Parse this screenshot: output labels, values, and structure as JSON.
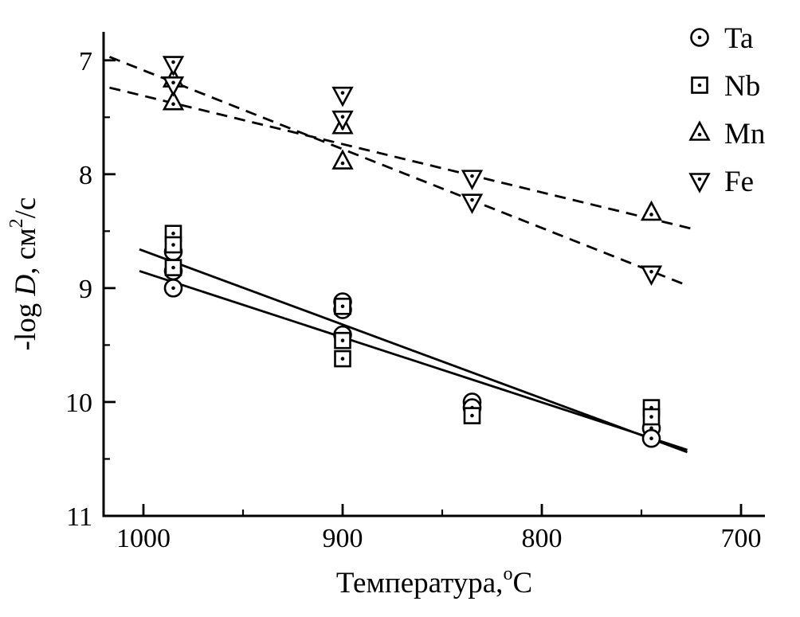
{
  "chart_data": {
    "type": "scatter",
    "title": "",
    "xlabel": "Температура,°С",
    "ylabel": "-log D, см2/с",
    "xlabel_parts": {
      "text": "Температура,",
      "sup": "о",
      "after": "С"
    },
    "ylabel_parts": {
      "pre": "-log ",
      "italic": "D",
      "mid": ", см",
      "sup": "2",
      "post": "/с"
    },
    "x_axis": {
      "min": 1020,
      "max": 688,
      "reversed": true,
      "ticks": [
        1000,
        900,
        800,
        700
      ],
      "minor_ticks": [
        950,
        850,
        750
      ]
    },
    "y_axis": {
      "min": 6.75,
      "max": 11,
      "increases_downward": true,
      "ticks": [
        7,
        8,
        9,
        10,
        11
      ],
      "minor_ticks": [
        7.5,
        8.5,
        9.5,
        10.5
      ]
    },
    "grid": false,
    "legend": {
      "position": "top-right",
      "items": [
        {
          "label": "Ta",
          "marker": "circle-dot"
        },
        {
          "label": "Nb",
          "marker": "square-dot"
        },
        {
          "label": "Mn",
          "marker": "triangle-up-dot"
        },
        {
          "label": "Fe",
          "marker": "triangle-down-dot"
        }
      ]
    },
    "series": [
      {
        "name": "Ta",
        "marker": "circle-dot",
        "points": [
          [
            985,
            8.68
          ],
          [
            985,
            8.85
          ],
          [
            985,
            9.0
          ],
          [
            900,
            9.12
          ],
          [
            900,
            9.19
          ],
          [
            900,
            9.41
          ],
          [
            835,
            10.0
          ],
          [
            835,
            10.05
          ],
          [
            745,
            10.23
          ],
          [
            745,
            10.32
          ]
        ]
      },
      {
        "name": "Nb",
        "marker": "square-dot",
        "points": [
          [
            985,
            8.52
          ],
          [
            985,
            8.62
          ],
          [
            985,
            8.82
          ],
          [
            900,
            9.16
          ],
          [
            900,
            9.46
          ],
          [
            900,
            9.62
          ],
          [
            835,
            10.12
          ],
          [
            745,
            10.05
          ],
          [
            745,
            10.13
          ]
        ]
      },
      {
        "name": "Mn",
        "marker": "triangle-up-dot",
        "points": [
          [
            985,
            7.17
          ],
          [
            985,
            7.37
          ],
          [
            900,
            7.58
          ],
          [
            900,
            7.89
          ],
          [
            745,
            8.34
          ]
        ]
      },
      {
        "name": "Fe",
        "marker": "triangle-down-dot",
        "points": [
          [
            985,
            7.03
          ],
          [
            985,
            7.21
          ],
          [
            900,
            7.3
          ],
          [
            900,
            7.51
          ],
          [
            835,
            8.03
          ],
          [
            835,
            8.24
          ],
          [
            745,
            8.87
          ]
        ]
      }
    ],
    "fit_lines": [
      {
        "name": "Fe-fit",
        "style": "dashed",
        "from": [
          1017,
          6.97
        ],
        "to": [
          728,
          8.97
        ]
      },
      {
        "name": "Mn-fit",
        "style": "dashed",
        "from": [
          1017,
          7.24
        ],
        "to": [
          722,
          8.49
        ]
      },
      {
        "name": "Nb-fit",
        "style": "solid",
        "from": [
          1002,
          8.66
        ],
        "to": [
          727,
          10.44
        ]
      },
      {
        "name": "Ta-fit",
        "style": "solid",
        "from": [
          1002,
          8.85
        ],
        "to": [
          727,
          10.42
        ]
      }
    ],
    "colors": {
      "foreground": "#000000",
      "background": "#ffffff"
    }
  }
}
